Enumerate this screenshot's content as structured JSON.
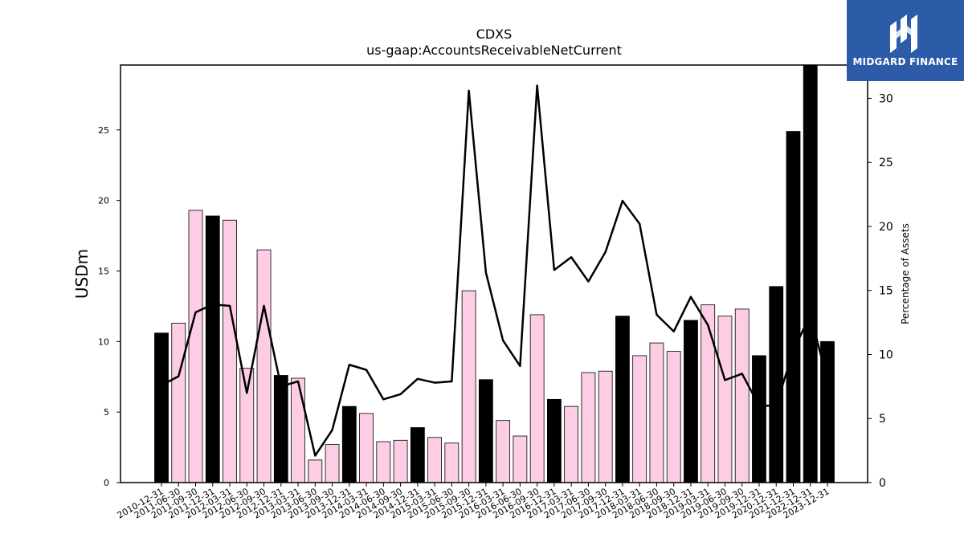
{
  "chart_data": {
    "type": "bar",
    "title": "CDXS",
    "subtitle": "us-gaap:AccountsReceivableNetCurrent",
    "ylabel": "USDm",
    "y2label": "Percentage of Assets",
    "ylim": [
      0,
      29.6
    ],
    "y2lim": [
      0,
      32.6
    ],
    "yticks": [
      0,
      5,
      10,
      15,
      20,
      25
    ],
    "y2ticks": [
      0,
      5,
      10,
      15,
      20,
      25,
      30
    ],
    "categories": [
      "2010-12-31",
      "2011-06-30",
      "2011-09-30",
      "2011-12-31",
      "2012-03-31",
      "2012-06-30",
      "2012-09-30",
      "2012-12-31",
      "2013-03-31",
      "2013-06-30",
      "2013-09-30",
      "2013-12-31",
      "2014-03-31",
      "2014-06-30",
      "2014-09-30",
      "2014-12-31",
      "2015-03-31",
      "2015-06-30",
      "2015-09-30",
      "2015-12-31",
      "2016-03-31",
      "2016-06-30",
      "2016-09-30",
      "2016-12-31",
      "2017-03-31",
      "2017-06-30",
      "2017-09-30",
      "2017-12-31",
      "2018-03-31",
      "2018-06-30",
      "2018-09-30",
      "2018-12-31",
      "2019-03-31",
      "2019-06-30",
      "2019-09-30",
      "2019-12-31",
      "2020-12-31",
      "2021-12-31",
      "2022-12-31",
      "2023-12-31"
    ],
    "series": [
      {
        "kind": "bar",
        "values": [
          10.6,
          11.3,
          19.3,
          18.9,
          18.6,
          8.1,
          16.5,
          7.6,
          7.4,
          1.6,
          2.7,
          5.4,
          4.9,
          2.9,
          3.0,
          3.9,
          3.2,
          2.8,
          13.6,
          7.3,
          4.4,
          3.3,
          11.9,
          5.9,
          5.4,
          7.8,
          7.9,
          11.8,
          9.0,
          9.9,
          9.3,
          11.5,
          12.6,
          11.8,
          12.3,
          9.0,
          13.9,
          24.9,
          29.6,
          10.0
        ],
        "fiscal_year_end": [
          true,
          false,
          false,
          true,
          false,
          false,
          false,
          true,
          false,
          false,
          false,
          true,
          false,
          false,
          false,
          true,
          false,
          false,
          false,
          true,
          false,
          false,
          false,
          true,
          false,
          false,
          false,
          true,
          false,
          false,
          false,
          true,
          false,
          false,
          false,
          true,
          true,
          true,
          true,
          true
        ]
      },
      {
        "kind": "line",
        "axis": "right",
        "values": [
          7.6,
          8.3,
          13.3,
          13.9,
          13.8,
          7.0,
          13.8,
          7.5,
          7.9,
          2.1,
          4.1,
          9.2,
          8.8,
          6.5,
          6.9,
          8.1,
          7.8,
          7.9,
          30.6,
          16.4,
          11.1,
          9.1,
          31.0,
          16.6,
          17.6,
          15.7,
          18.0,
          22.0,
          20.2,
          13.1,
          11.8,
          14.5,
          12.3,
          8.0,
          8.5,
          6.0,
          6.0,
          10.3,
          13.1,
          8.0
        ]
      }
    ],
    "colors": {
      "bar_annual": "#000000",
      "bar_quarter": "#fccde5",
      "line": "#000000"
    }
  },
  "logo": {
    "text": "MIDGARD FINANCE",
    "background": "#2c5ba8"
  }
}
